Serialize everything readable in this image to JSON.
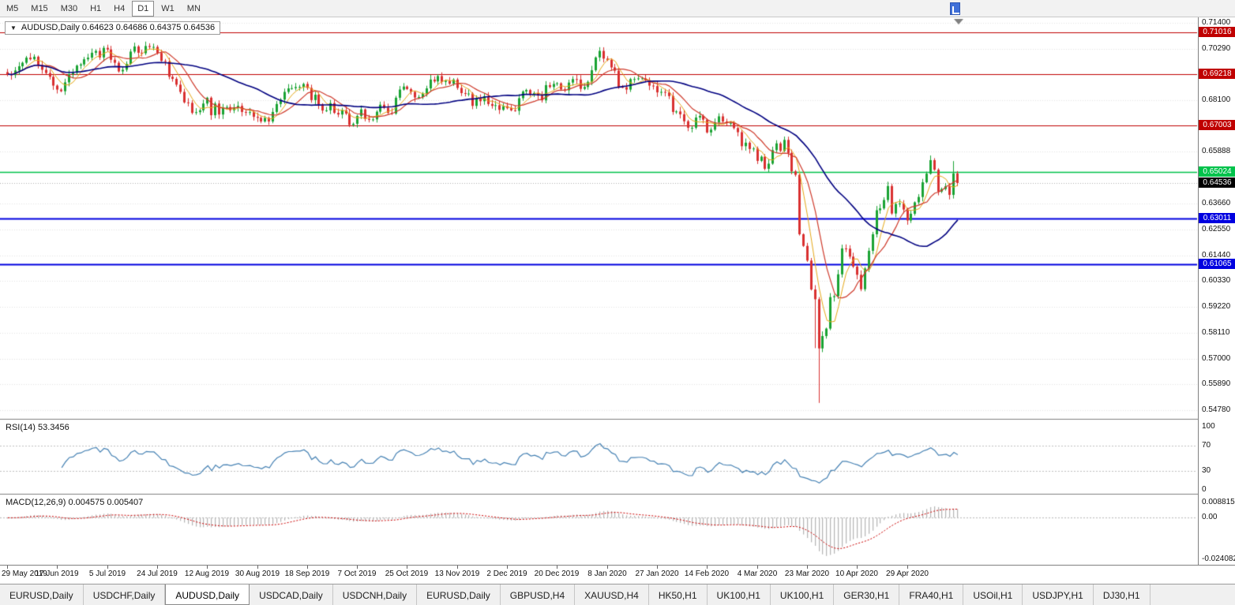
{
  "toolbar": {
    "timeframes": [
      {
        "label": "M5",
        "active": false
      },
      {
        "label": "M15",
        "active": false
      },
      {
        "label": "M30",
        "active": false
      },
      {
        "label": "H1",
        "active": false
      },
      {
        "label": "H4",
        "active": false
      },
      {
        "label": "D1",
        "active": true
      },
      {
        "label": "W1",
        "active": false
      },
      {
        "label": "MN",
        "active": false
      }
    ]
  },
  "chart_header": {
    "dropdown_glyph": "▼",
    "text": "AUDUSD,Daily 0.64623 0.64686 0.64375 0.64536"
  },
  "price_scale": {
    "grid": [
      {
        "label": "0.71400",
        "value": 0.714
      },
      {
        "label": "0.70290",
        "value": 0.7029
      },
      {
        "label": "0.68100",
        "value": 0.681
      },
      {
        "label": "0.65888",
        "value": 0.65888
      },
      {
        "label": "0.63660",
        "value": 0.6366
      },
      {
        "label": "0.62550",
        "value": 0.6255
      },
      {
        "label": "0.61440",
        "value": 0.6144
      },
      {
        "label": "0.60330",
        "value": 0.6033
      },
      {
        "label": "0.59220",
        "value": 0.5922
      },
      {
        "label": "0.58110",
        "value": 0.5811
      },
      {
        "label": "0.57000",
        "value": 0.57
      },
      {
        "label": "0.55890",
        "value": 0.5589
      },
      {
        "label": "0.54780",
        "value": 0.5478
      }
    ],
    "current": {
      "label": "0.64536",
      "value": 0.64536,
      "color": "#000000"
    }
  },
  "chart_data": {
    "type": "candlestick",
    "symbol": "AUDUSD",
    "timeframe": "Daily",
    "ohlc_display": {
      "open": "0.64623",
      "high": "0.64686",
      "low": "0.64375",
      "close": "0.64536"
    },
    "y_axis_range": [
      0.5478,
      0.714
    ],
    "up_color": "#1aa333",
    "down_color": "#d93030",
    "grid_color": "#e4e4e4",
    "current_price_line_color": "#b0b0b0",
    "open_first": 0.693,
    "closes": [
      0.6921,
      0.6917,
      0.6937,
      0.6955,
      0.697,
      0.6992,
      0.6985,
      0.6996,
      0.696,
      0.694,
      0.6926,
      0.691,
      0.6872,
      0.6855,
      0.6848,
      0.6886,
      0.6921,
      0.6927,
      0.6958,
      0.6963,
      0.6985,
      0.6992,
      0.7013,
      0.7021,
      0.6993,
      0.7034,
      0.7027,
      0.6983,
      0.697,
      0.6933,
      0.694,
      0.6965,
      0.7018,
      0.704,
      0.7013,
      0.7011,
      0.7042,
      0.7038,
      0.7038,
      0.7012,
      0.6978,
      0.6975,
      0.691,
      0.6901,
      0.6876,
      0.6845,
      0.68,
      0.6798,
      0.6755,
      0.6758,
      0.6766,
      0.6795,
      0.682,
      0.6745,
      0.6795,
      0.6748,
      0.6778,
      0.678,
      0.6766,
      0.6777,
      0.6785,
      0.6759,
      0.6756,
      0.6758,
      0.6738,
      0.6734,
      0.6718,
      0.6733,
      0.6718,
      0.6759,
      0.6793,
      0.6812,
      0.6845,
      0.686,
      0.6861,
      0.6866,
      0.6866,
      0.6879,
      0.6862,
      0.681,
      0.6833,
      0.6791,
      0.6765,
      0.6766,
      0.6797,
      0.6755,
      0.6748,
      0.6766,
      0.6752,
      0.6703,
      0.6708,
      0.6742,
      0.677,
      0.6729,
      0.6725,
      0.6727,
      0.676,
      0.679,
      0.6777,
      0.6755,
      0.6752,
      0.682,
      0.6855,
      0.6868,
      0.6857,
      0.6845,
      0.6821,
      0.6823,
      0.6837,
      0.686,
      0.6898,
      0.689,
      0.6913,
      0.6888,
      0.6893,
      0.688,
      0.6898,
      0.6862,
      0.684,
      0.6838,
      0.6838,
      0.6785,
      0.6818,
      0.6805,
      0.6826,
      0.6793,
      0.6785,
      0.6788,
      0.6768,
      0.6784,
      0.6775,
      0.6766,
      0.6764,
      0.6818,
      0.6847,
      0.6853,
      0.6834,
      0.684,
      0.6829,
      0.6809,
      0.6874,
      0.6866,
      0.6879,
      0.6882,
      0.6856,
      0.6852,
      0.6885,
      0.69,
      0.6898,
      0.6858,
      0.6866,
      0.6888,
      0.6938,
      0.6993,
      0.7021,
      0.6988,
      0.6982,
      0.695,
      0.6936,
      0.6866,
      0.6865,
      0.6855,
      0.69,
      0.69,
      0.6903,
      0.6903,
      0.6895,
      0.6872,
      0.687,
      0.6843,
      0.6845,
      0.6843,
      0.6827,
      0.6759,
      0.6761,
      0.6749,
      0.6719,
      0.6691,
      0.6691,
      0.6735,
      0.6742,
      0.6726,
      0.6671,
      0.6683,
      0.6714,
      0.674,
      0.6718,
      0.6711,
      0.6712,
      0.669,
      0.6672,
      0.6612,
      0.6627,
      0.66,
      0.6602,
      0.6549,
      0.6567,
      0.6515,
      0.6537,
      0.6595,
      0.6624,
      0.6592,
      0.6639,
      0.6583,
      0.6504,
      0.6489,
      0.6234,
      0.6184,
      0.6121,
      0.5997,
      0.5955,
      0.5744,
      0.5797,
      0.5829,
      0.5964,
      0.5968,
      0.6062,
      0.6173,
      0.6172,
      0.6138,
      0.6095,
      0.606,
      0.5998,
      0.6087,
      0.6163,
      0.6234,
      0.6337,
      0.6345,
      0.6381,
      0.6441,
      0.6323,
      0.6364,
      0.6366,
      0.634,
      0.6293,
      0.6322,
      0.6371,
      0.6394,
      0.6457,
      0.6494,
      0.6552,
      0.6511,
      0.6417,
      0.6428,
      0.644,
      0.6403,
      0.6495,
      0.6454
    ],
    "wick_high_overrides": {
      "240": 0.6572,
      "246": 0.6548
    },
    "wick_low_overrides": {
      "210": 0.5745,
      "211": 0.551
    },
    "moving_averages": [
      {
        "period": 5,
        "color": "#e6a817",
        "width": 1
      },
      {
        "period": 10,
        "color": "#cf3a2b",
        "width": 1.2
      },
      {
        "period": 34,
        "color": "#000080",
        "width": 1.6
      }
    ],
    "horizontal_lines": [
      {
        "price": 0.71016,
        "label": "0.71016",
        "color": "#c00000",
        "width": 1
      },
      {
        "price": 0.69218,
        "label": "0.69218",
        "color": "#c00000",
        "width": 1
      },
      {
        "price": 0.67003,
        "label": "0.67003",
        "color": "#c00000",
        "width": 1
      },
      {
        "price": 0.65024,
        "label": "0.65024",
        "color": "#00c24b",
        "width": 1.5
      },
      {
        "price": 0.63011,
        "label": "0.63011",
        "color": "#0000e0",
        "width": 2
      },
      {
        "price": 0.61065,
        "label": "0.61065",
        "color": "#0000e0",
        "width": 2
      }
    ],
    "indicators": {
      "rsi": {
        "period": 14,
        "current": "53.3456",
        "levels": [
          70,
          30
        ],
        "color": "#4682b4"
      },
      "macd": {
        "fast": 12,
        "slow": 26,
        "signal": 9,
        "values": [
          "0.004575",
          "0.005407"
        ],
        "histogram_color": "#b5b5b5",
        "signal_color": "#cc0000"
      }
    }
  },
  "rsi_panel": {
    "label": "RSI(14) 53.3456",
    "scale": [
      {
        "label": "100",
        "value": 100
      },
      {
        "label": "70",
        "value": 70
      },
      {
        "label": "30",
        "value": 30
      },
      {
        "label": "0",
        "value": 0
      }
    ]
  },
  "macd_panel": {
    "label": "MACD(12,26,9) 0.004575 0.005407",
    "scale": [
      {
        "label": "0.008815",
        "value": 0.008815
      },
      {
        "label": "0.00",
        "value": 0
      },
      {
        "label": "-0.024082",
        "value": -0.024082
      }
    ]
  },
  "time_axis": {
    "labels": [
      {
        "text": "29 May 2019",
        "index": 0
      },
      {
        "text": "17 Jun 2019",
        "index": 13
      },
      {
        "text": "5 Jul 2019",
        "index": 26
      },
      {
        "text": "24 Jul 2019",
        "index": 39
      },
      {
        "text": "12 Aug 2019",
        "index": 52
      },
      {
        "text": "30 Aug 2019",
        "index": 65
      },
      {
        "text": "18 Sep 2019",
        "index": 78
      },
      {
        "text": "7 Oct 2019",
        "index": 91
      },
      {
        "text": "25 Oct 2019",
        "index": 104
      },
      {
        "text": "13 Nov 2019",
        "index": 117
      },
      {
        "text": "2 Dec 2019",
        "index": 130
      },
      {
        "text": "20 Dec 2019",
        "index": 143
      },
      {
        "text": "8 Jan 2020",
        "index": 156
      },
      {
        "text": "27 Jan 2020",
        "index": 169
      },
      {
        "text": "14 Feb 2020",
        "index": 182
      },
      {
        "text": "4 Mar 2020",
        "index": 195
      },
      {
        "text": "23 Mar 2020",
        "index": 208
      },
      {
        "text": "10 Apr 2020",
        "index": 221
      },
      {
        "text": "29 Apr 2020",
        "index": 234
      }
    ]
  },
  "tabs": [
    {
      "label": "EURUSD,Daily",
      "active": false
    },
    {
      "label": "USDCHF,Daily",
      "active": false
    },
    {
      "label": "AUDUSD,Daily",
      "active": true
    },
    {
      "label": "USDCAD,Daily",
      "active": false
    },
    {
      "label": "USDCNH,Daily",
      "active": false
    },
    {
      "label": "EURUSD,Daily",
      "active": false
    },
    {
      "label": "GBPUSD,H4",
      "active": false
    },
    {
      "label": "XAUUSD,H4",
      "active": false
    },
    {
      "label": "HK50,H1",
      "active": false
    },
    {
      "label": "UK100,H1",
      "active": false
    },
    {
      "label": "UK100,H1",
      "active": false
    },
    {
      "label": "GER30,H1",
      "active": false
    },
    {
      "label": "FRA40,H1",
      "active": false
    },
    {
      "label": "USOil,H1",
      "active": false
    },
    {
      "label": "USDJPY,H1",
      "active": false
    },
    {
      "label": "DJ30,H1",
      "active": false
    }
  ]
}
